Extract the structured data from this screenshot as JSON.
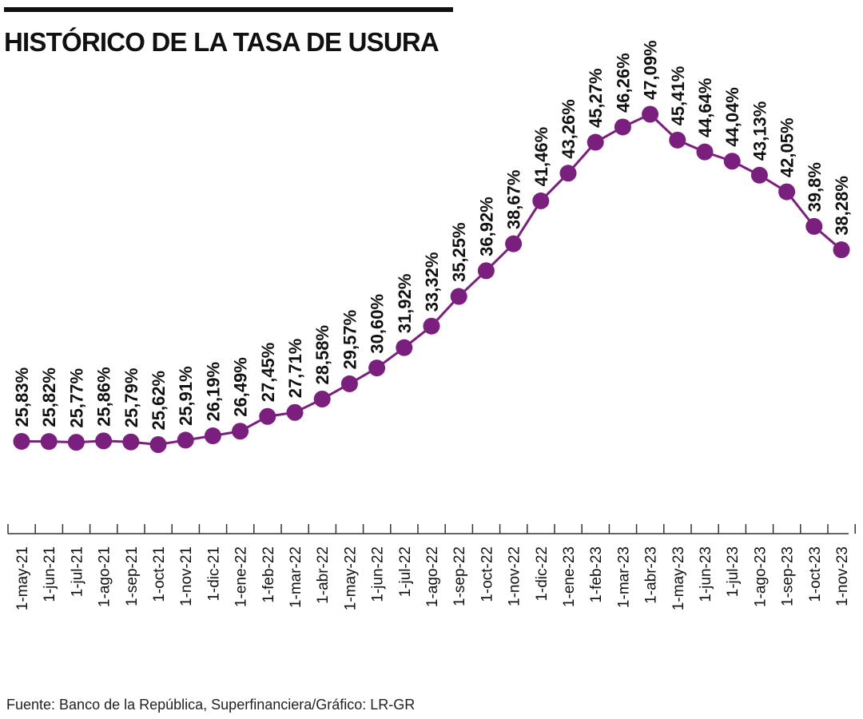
{
  "title": "HISTÓRICO DE LA TASA DE USURA",
  "source": "Fuente: Banco de la República, Superfinanciera/Gráfico: LR-GR",
  "colors": {
    "series": "#7b1f7f",
    "text": "#111111",
    "axis": "#333333"
  },
  "chart_data": {
    "type": "line",
    "title": "HISTÓRICO DE LA TASA DE USURA",
    "xlabel": "",
    "ylabel": "",
    "grid": false,
    "legend": "none",
    "x": [
      "1-may-21",
      "1-jun-21",
      "1-jul-21",
      "1-ago-21",
      "1-sep-21",
      "1-oct-21",
      "1-nov-21",
      "1-dic-21",
      "1-ene-22",
      "1-feb-22",
      "1-mar-22",
      "1-abr-22",
      "1-may-22",
      "1-jun-22",
      "1-jul-22",
      "1-ago-22",
      "1-sep-22",
      "1-oct-22",
      "1-nov-22",
      "1-dic-22",
      "1-ene-23",
      "1-feb-23",
      "1-mar-23",
      "1-abr-23",
      "1-may-23",
      "1-jun-23",
      "1-jul-23",
      "1-ago-23",
      "1-sep-23",
      "1-oct-23",
      "1-nov-23"
    ],
    "values": [
      25.83,
      25.82,
      25.77,
      25.86,
      25.79,
      25.62,
      25.91,
      26.19,
      26.49,
      27.45,
      27.71,
      28.58,
      29.57,
      30.6,
      31.92,
      33.32,
      35.25,
      36.92,
      38.67,
      41.46,
      43.26,
      45.27,
      46.26,
      47.09,
      45.41,
      44.64,
      44.04,
      43.13,
      42.05,
      39.8,
      38.28
    ],
    "data_labels": [
      "25,83%",
      "25,82%",
      "25,77%",
      "25,86%",
      "25,79%",
      "25,62%",
      "25,91%",
      "26,19%",
      "26,49%",
      "27,45%",
      "27,71%",
      "28,58%",
      "29,57%",
      "30,60%",
      "31,92%",
      "33,32%",
      "35,25%",
      "36,92%",
      "38,67%",
      "41,46%",
      "43,26%",
      "45,27%",
      "46,26%",
      "47,09%",
      "45,41%",
      "44,64%",
      "44,04%",
      "43,13%",
      "42,05%",
      "39,8%",
      "38,28%"
    ]
  }
}
